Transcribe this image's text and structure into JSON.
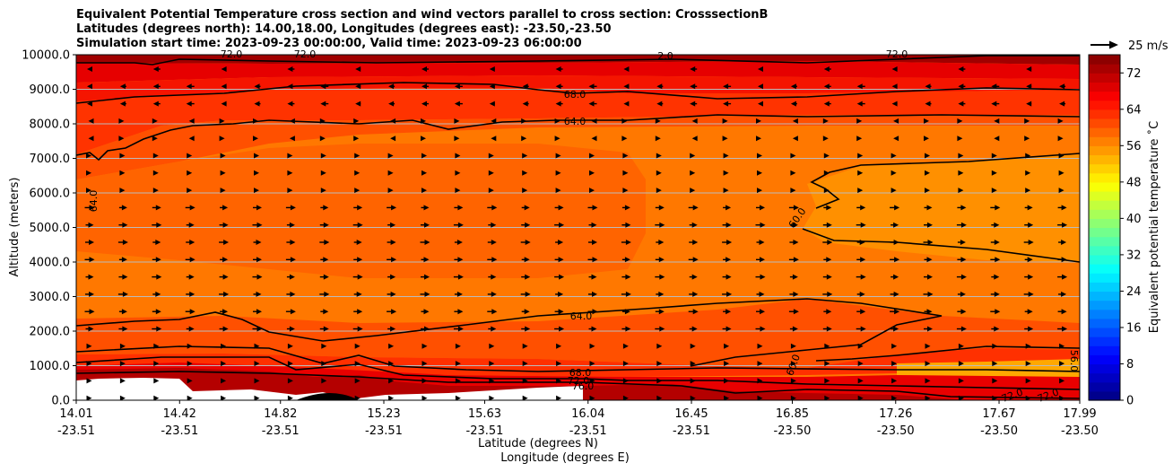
{
  "chart_data": {
    "type": "heatmap",
    "title_lines": [
      "Equivalent Potential Temperature cross section and wind vectors parallel to cross section: CrosssectionB",
      "Latitudes (degrees north): 14.00,18.00, Longitudes (degrees east): -23.50,-23.50",
      "Simulation start time: 2023-09-23 00:00:00, Valid time: 2023-09-23 06:00:00"
    ],
    "ylabel": "Altitude (meters)",
    "xlabel": "Latitude (degrees N)",
    "xlabel2": "Longitude (degrees E)",
    "ylim": [
      0,
      10000
    ],
    "yticks": [
      "0.0",
      "1000.0",
      "2000.0",
      "3000.0",
      "4000.0",
      "5000.0",
      "6000.0",
      "7000.0",
      "8000.0",
      "9000.0",
      "10000.0"
    ],
    "xticks": [
      {
        "lat": "14.01",
        "lon": "-23.51"
      },
      {
        "lat": "14.42",
        "lon": "-23.51"
      },
      {
        "lat": "14.82",
        "lon": "-23.51"
      },
      {
        "lat": "15.23",
        "lon": "-23.51"
      },
      {
        "lat": "15.63",
        "lon": "-23.51"
      },
      {
        "lat": "16.04",
        "lon": "-23.51"
      },
      {
        "lat": "16.45",
        "lon": "-23.51"
      },
      {
        "lat": "16.85",
        "lon": "-23.50"
      },
      {
        "lat": "17.26",
        "lon": "-23.50"
      },
      {
        "lat": "17.67",
        "lon": "-23.50"
      },
      {
        "lat": "17.99",
        "lon": "-23.50"
      }
    ],
    "colorbar": {
      "label": "Equivalent potential temperature ˚C",
      "min": 0,
      "max": 76,
      "step": 2,
      "ticks": [
        "0",
        "8",
        "16",
        "24",
        "32",
        "40",
        "48",
        "56",
        "64",
        "72"
      ]
    },
    "wind_key_label": "25 m/s",
    "contour_labels": [
      "72.0",
      "72.0",
      "72.0",
      "2.0",
      "68.0",
      "64.0",
      "64.0",
      "60.0",
      "64.0",
      "68.0",
      "72.0",
      "76.0",
      "60.0",
      "56.0",
      "72.0",
      "72.0"
    ],
    "grid": true
  }
}
